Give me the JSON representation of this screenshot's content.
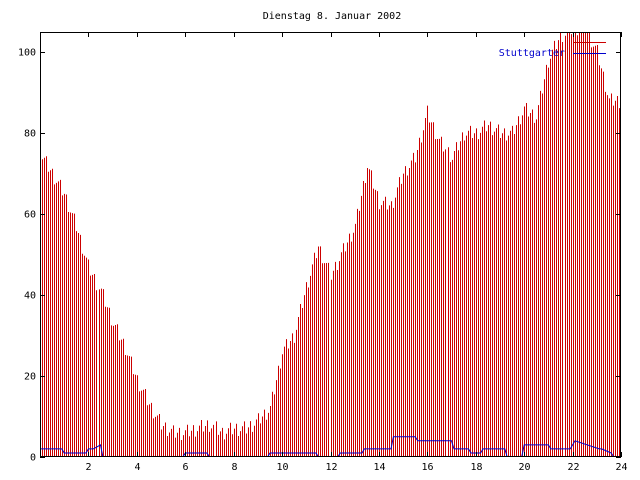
{
  "chart_data": {
    "type": "bar",
    "title": "Dienstag 8. Januar 2002",
    "xlabel": "",
    "ylabel": "",
    "xlim": [
      0,
      24
    ],
    "ylim": [
      0,
      105
    ],
    "x_ticks": [
      "2",
      "4",
      "6",
      "8",
      "10",
      "12",
      "14",
      "16",
      "18",
      "20",
      "22",
      "24"
    ],
    "y_ticks": [
      "0",
      "20",
      "40",
      "60",
      "80",
      "100"
    ],
    "grid": false,
    "legend_position": "top-right",
    "series": [
      {
        "name": "",
        "style": "impulses",
        "color": "#cc0000",
        "x": [
          0.0,
          0.5,
          1.0,
          1.5,
          2.0,
          2.5,
          3.0,
          3.5,
          4.0,
          4.5,
          5.0,
          5.5,
          6.0,
          6.5,
          7.0,
          7.5,
          8.0,
          8.5,
          9.0,
          9.5,
          10.0,
          10.5,
          11.0,
          11.5,
          12.0,
          12.5,
          13.0,
          13.5,
          14.0,
          14.5,
          15.0,
          15.5,
          16.0,
          16.5,
          17.0,
          17.5,
          18.0,
          18.5,
          19.0,
          19.5,
          20.0,
          20.5,
          21.0,
          21.5,
          22.0,
          22.5,
          23.0,
          23.5,
          24.0
        ],
        "values": [
          75,
          70,
          65,
          57,
          47,
          41,
          33,
          27,
          19,
          13,
          8,
          6,
          6,
          7,
          8,
          6,
          7,
          7,
          9,
          12,
          26,
          30,
          42,
          52,
          45,
          51,
          57,
          72,
          63,
          62,
          70,
          74,
          85,
          78,
          74,
          80,
          80,
          82,
          80,
          80,
          86,
          84,
          98,
          104,
          106,
          106,
          100,
          88,
          88
        ]
      },
      {
        "name": "Stuttgarter",
        "style": "line",
        "color": "#0000cc",
        "x": [
          0,
          0.5,
          0.9,
          1.0,
          1.9,
          2.0,
          2.2,
          2.5,
          2.6,
          5.9,
          6.0,
          6.9,
          7.0,
          9.4,
          9.5,
          11.4,
          11.5,
          12.3,
          12.4,
          13.3,
          13.4,
          14.5,
          14.6,
          15.5,
          15.6,
          17.0,
          17.1,
          17.7,
          17.8,
          18.2,
          18.3,
          19.2,
          19.3,
          19.9,
          20.0,
          21.0,
          21.1,
          21.9,
          22.0,
          22.1,
          23.1,
          23.2,
          23.6,
          23.7
        ],
        "values": [
          2,
          2,
          2,
          1,
          1,
          2,
          2,
          3,
          0,
          0,
          1,
          1,
          0,
          0,
          1,
          1,
          0,
          0,
          1,
          1,
          2,
          2,
          5,
          5,
          4,
          4,
          2,
          2,
          1,
          1,
          2,
          2,
          0,
          0,
          3,
          3,
          2,
          2,
          3,
          4,
          2,
          2,
          1,
          0
        ]
      }
    ]
  }
}
